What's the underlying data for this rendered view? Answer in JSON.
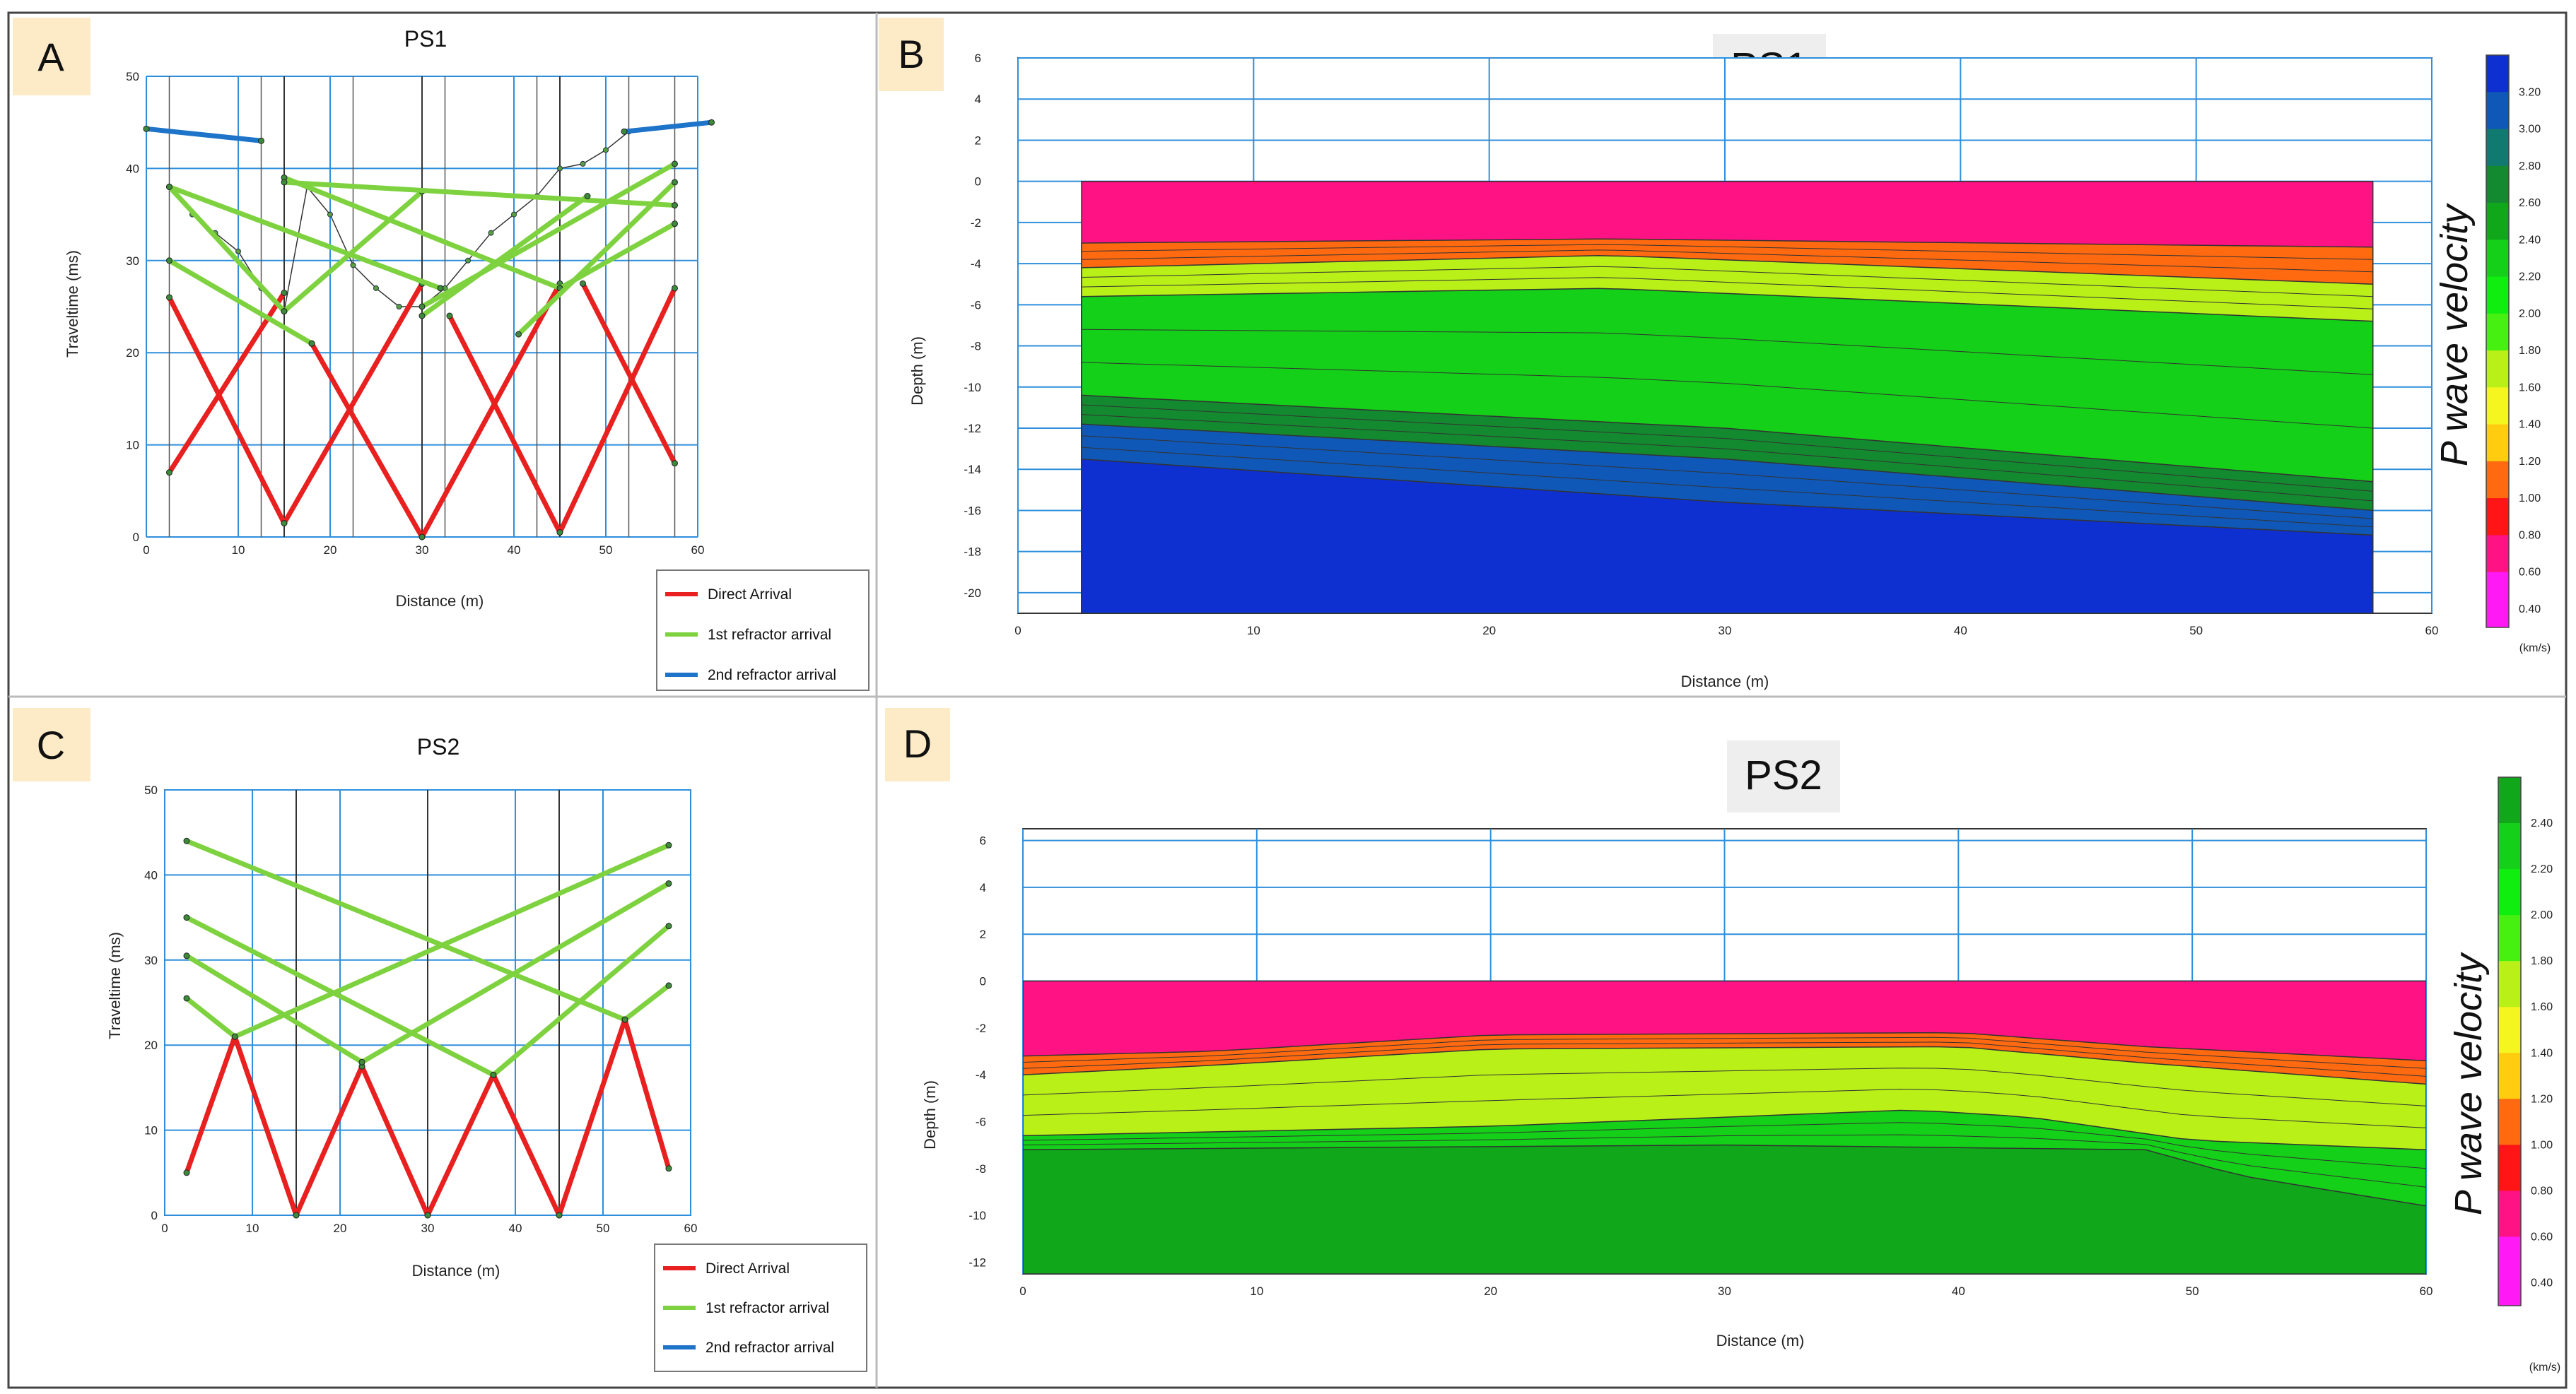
{
  "panels": {
    "a": {
      "letter": "A",
      "title": "PS1"
    },
    "b": {
      "letter": "B",
      "title": "PS1"
    },
    "c": {
      "letter": "C",
      "title": "PS2"
    },
    "d": {
      "letter": "D",
      "title": "PS2"
    }
  },
  "travel_axes": {
    "ylabel": "Traveltime (ms)",
    "xlabel": "Distance (m)",
    "legend": [
      "Direct Arrival",
      "1st refractor arrival",
      "2nd refractor arrival"
    ]
  },
  "section_axes": {
    "ylabel": "Depth (m)",
    "xlabel": "Distance (m)",
    "colorbar_title": "P wave velocity",
    "colorbar_unit": "(km/s)"
  },
  "colors": {
    "direct": "#e8201f",
    "refr1": "#7ed23f",
    "refr2": "#1e74c8",
    "grid": "#2f8fdc",
    "picks": "#2a6a2a"
  },
  "chart_data": [
    {
      "panel": "A",
      "type": "line",
      "title": "PS1",
      "xlabel": "Distance (m)",
      "ylabel": "Traveltime (ms)",
      "xlim": [
        0,
        60
      ],
      "ylim": [
        0,
        50
      ],
      "xticks": [
        0,
        10,
        20,
        30,
        40,
        50,
        60
      ],
      "yticks": [
        0,
        10,
        20,
        30,
        40,
        50
      ],
      "shot_positions": [
        15,
        30,
        45
      ],
      "geophone_lines": [
        2.5,
        12.5,
        22.5,
        32.5,
        42.5,
        52.5,
        57.5
      ],
      "legend_position": "bottom-right",
      "series": [
        {
          "name": "Direct Arrival",
          "color": "#e8201f",
          "segments": [
            [
              [
                2.5,
                26
              ],
              [
                15,
                1.5
              ]
            ],
            [
              [
                2.5,
                7
              ],
              [
                15,
                26.5
              ]
            ],
            [
              [
                15,
                1.5
              ],
              [
                30,
                27.5
              ]
            ],
            [
              [
                18,
                21
              ],
              [
                30,
                0
              ]
            ],
            [
              [
                30,
                0
              ],
              [
                45,
                27.5
              ]
            ],
            [
              [
                33,
                24
              ],
              [
                45,
                0.5
              ]
            ],
            [
              [
                45,
                0.5
              ],
              [
                57.5,
                27
              ]
            ],
            [
              [
                47.5,
                27.5
              ],
              [
                57.5,
                8
              ]
            ]
          ]
        },
        {
          "name": "1st refractor arrival",
          "color": "#7ed23f",
          "segments": [
            [
              [
                2.5,
                38
              ],
              [
                15,
                24.5
              ]
            ],
            [
              [
                2.5,
                30
              ],
              [
                18,
                21
              ]
            ],
            [
              [
                2.5,
                38
              ],
              [
                32,
                27
              ]
            ],
            [
              [
                15,
                24.5
              ],
              [
                30,
                37.5
              ]
            ],
            [
              [
                15,
                39
              ],
              [
                45,
                27
              ]
            ],
            [
              [
                15,
                38.5
              ],
              [
                57.5,
                36
              ]
            ],
            [
              [
                30,
                25
              ],
              [
                57.5,
                40.5
              ]
            ],
            [
              [
                30,
                24
              ],
              [
                48,
                37
              ]
            ],
            [
              [
                45,
                27
              ],
              [
                57.5,
                34
              ]
            ],
            [
              [
                40.5,
                22
              ],
              [
                57.5,
                38.5
              ]
            ]
          ]
        },
        {
          "name": "2nd refractor arrival",
          "color": "#1e74c8",
          "segments": [
            [
              [
                0,
                44.3
              ],
              [
                12.5,
                43
              ]
            ],
            [
              [
                52,
                44
              ],
              [
                61.5,
                45
              ]
            ]
          ]
        },
        {
          "name": "",
          "color": "#333333",
          "type": "picks",
          "points": [
            [
              2.5,
              38
            ],
            [
              5,
              35
            ],
            [
              7.5,
              33
            ],
            [
              10,
              31
            ],
            [
              12.5,
              27
            ],
            [
              15,
              24.5
            ],
            [
              17.5,
              38
            ],
            [
              20,
              35
            ],
            [
              22.5,
              29.5
            ],
            [
              25,
              27
            ],
            [
              27.5,
              25
            ],
            [
              30,
              25
            ],
            [
              32.5,
              27
            ],
            [
              35,
              30
            ],
            [
              37.5,
              33
            ],
            [
              40,
              35
            ],
            [
              42.5,
              37
            ],
            [
              45,
              40
            ],
            [
              47.5,
              40.5
            ],
            [
              50,
              42
            ],
            [
              52.5,
              44
            ]
          ]
        }
      ]
    },
    {
      "panel": "B",
      "type": "heatmap",
      "title": "PS1",
      "xlabel": "Distance (m)",
      "ylabel": "Depth (m)",
      "xlim": [
        0,
        60
      ],
      "ylim": [
        -21,
        6
      ],
      "xticks": [
        0,
        10,
        20,
        30,
        40,
        50,
        60
      ],
      "yticks": [
        6,
        4,
        2,
        0,
        -2,
        -4,
        -6,
        -8,
        -10,
        -12,
        -14,
        -16,
        -18,
        -20
      ],
      "model_extent_x": [
        2.7,
        57.5
      ],
      "colorbar_ticks": [
        3.2,
        3.0,
        2.8,
        2.6,
        2.4,
        2.2,
        2.0,
        1.8,
        1.6,
        1.4,
        1.2,
        1.0,
        0.8,
        0.6,
        0.4
      ],
      "layers": [
        {
          "velocity_km_s": 0.5,
          "top_depth": 0
        },
        {
          "velocity_km_s": 1.0,
          "top_depth_x": [
            [
              2.7,
              -3.0
            ],
            [
              25,
              -2.8
            ],
            [
              57.5,
              -3.2
            ]
          ]
        },
        {
          "velocity_km_s": 1.5,
          "top_depth_x": [
            [
              2.7,
              -4.2
            ],
            [
              25,
              -3.6
            ],
            [
              57.5,
              -5.0
            ]
          ]
        },
        {
          "velocity_km_s": 2.1,
          "top_depth_x": [
            [
              2.7,
              -5.6
            ],
            [
              25,
              -5.2
            ],
            [
              57.5,
              -6.8
            ]
          ]
        },
        {
          "velocity_km_s": 2.6,
          "top_depth_x": [
            [
              2.7,
              -10.4
            ],
            [
              30,
              -12.0
            ],
            [
              57.5,
              -14.6
            ]
          ]
        },
        {
          "velocity_km_s": 2.9,
          "top_depth_x": [
            [
              2.7,
              -11.8
            ],
            [
              30,
              -13.5
            ],
            [
              57.5,
              -16.0
            ]
          ]
        },
        {
          "velocity_km_s": 3.1,
          "top_depth_x": [
            [
              2.7,
              -13.5
            ],
            [
              30,
              -15.6
            ],
            [
              57.5,
              -17.2
            ]
          ]
        }
      ]
    },
    {
      "panel": "C",
      "type": "line",
      "title": "PS2",
      "xlabel": "Distance (m)",
      "ylabel": "Traveltime (ms)",
      "xlim": [
        0,
        60
      ],
      "ylim": [
        0,
        50
      ],
      "xticks": [
        0,
        10,
        20,
        30,
        40,
        50,
        60
      ],
      "yticks": [
        0,
        10,
        20,
        30,
        40,
        50
      ],
      "shot_positions": [
        15,
        30,
        45
      ],
      "legend_position": "bottom-right",
      "series": [
        {
          "name": "Direct Arrival",
          "color": "#e8201f",
          "segments": [
            [
              [
                2.5,
                5
              ],
              [
                8,
                21
              ]
            ],
            [
              [
                8,
                21
              ],
              [
                15,
                0
              ]
            ],
            [
              [
                15,
                0
              ],
              [
                22.5,
                17.5
              ]
            ],
            [
              [
                22.5,
                17.5
              ],
              [
                30,
                0
              ]
            ],
            [
              [
                30,
                0
              ],
              [
                37.5,
                16.5
              ]
            ],
            [
              [
                37.5,
                16.5
              ],
              [
                45,
                0
              ]
            ],
            [
              [
                45,
                0
              ],
              [
                52.5,
                23
              ]
            ],
            [
              [
                52.5,
                23
              ],
              [
                57.5,
                5.5
              ]
            ]
          ]
        },
        {
          "name": "1st refractor arrival",
          "color": "#7ed23f",
          "segments": [
            [
              [
                2.5,
                44
              ],
              [
                52.5,
                23
              ]
            ],
            [
              [
                2.5,
                35
              ],
              [
                37.5,
                16.5
              ]
            ],
            [
              [
                2.5,
                30.5
              ],
              [
                22.5,
                18
              ]
            ],
            [
              [
                8,
                21
              ],
              [
                57.5,
                43.5
              ]
            ],
            [
              [
                22.5,
                18
              ],
              [
                57.5,
                39
              ]
            ],
            [
              [
                37.5,
                16.5
              ],
              [
                57.5,
                34
              ]
            ],
            [
              [
                2.5,
                25.5
              ],
              [
                8,
                21
              ]
            ],
            [
              [
                52.5,
                23
              ],
              [
                57.5,
                27
              ]
            ]
          ]
        },
        {
          "name": "2nd refractor arrival",
          "color": "#1e74c8",
          "segments": []
        }
      ]
    },
    {
      "panel": "D",
      "type": "heatmap",
      "title": "PS2",
      "xlabel": "Distance (m)",
      "ylabel": "Depth (m)",
      "xlim": [
        0,
        60
      ],
      "ylim": [
        -12.5,
        6.5
      ],
      "xticks": [
        0,
        10,
        20,
        30,
        40,
        50,
        60
      ],
      "yticks": [
        6,
        4,
        2,
        0,
        -2,
        -4,
        -6,
        -8,
        -10,
        -12
      ],
      "model_extent_x": [
        0,
        60
      ],
      "colorbar_ticks": [
        2.4,
        2.2,
        2.0,
        1.8,
        1.6,
        1.4,
        1.2,
        1.0,
        0.8,
        0.6,
        0.4
      ],
      "layers": [
        {
          "velocity_km_s": 0.6,
          "top_depth": 0
        },
        {
          "velocity_km_s": 0.9,
          "top_depth_x": [
            [
              0,
              -3.2
            ],
            [
              8,
              -3.0
            ],
            [
              20,
              -2.3
            ],
            [
              40,
              -2.2
            ],
            [
              48,
              -2.8
            ],
            [
              60,
              -3.4
            ]
          ]
        },
        {
          "velocity_km_s": 1.5,
          "top_depth_x": [
            [
              0,
              -4.0
            ],
            [
              8,
              -3.6
            ],
            [
              20,
              -2.9
            ],
            [
              40,
              -2.8
            ],
            [
              48,
              -3.5
            ],
            [
              60,
              -4.4
            ]
          ]
        },
        {
          "velocity_km_s": 2.1,
          "top_depth_x": [
            [
              0,
              -6.6
            ],
            [
              20,
              -6.2
            ],
            [
              38,
              -5.5
            ],
            [
              43,
              -5.8
            ],
            [
              50,
              -6.8
            ],
            [
              60,
              -7.2
            ]
          ]
        },
        {
          "velocity_km_s": 2.4,
          "top_depth_x": [
            [
              0,
              -7.2
            ],
            [
              30,
              -7.0
            ],
            [
              48,
              -7.2
            ],
            [
              52,
              -8.3
            ],
            [
              60,
              -9.6
            ]
          ]
        }
      ]
    }
  ]
}
